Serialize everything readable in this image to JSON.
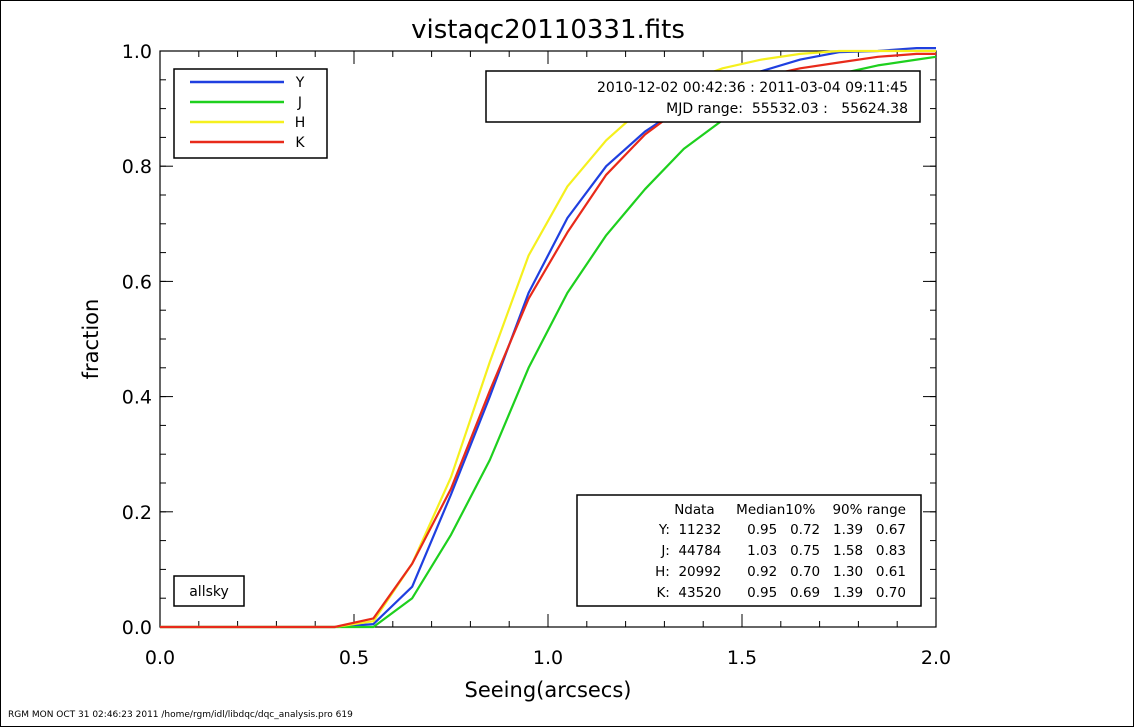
{
  "chart_data": {
    "type": "line",
    "title": "vistaqc20110331.fits",
    "xlabel": "Seeing(arcsecs)",
    "ylabel": "fraction",
    "xlim": [
      0.0,
      2.0
    ],
    "ylim": [
      0.0,
      1.0
    ],
    "x_ticks": [
      "0.0",
      "0.5",
      "1.0",
      "1.5",
      "2.0"
    ],
    "y_ticks": [
      "0.0",
      "0.2",
      "0.4",
      "0.6",
      "0.8",
      "1.0"
    ],
    "x": [
      0.0,
      0.45,
      0.55,
      0.65,
      0.75,
      0.85,
      0.95,
      1.05,
      1.15,
      1.25,
      1.35,
      1.45,
      1.55,
      1.65,
      1.75,
      1.85,
      1.95,
      2.0
    ],
    "series": [
      {
        "name": "Y",
        "color": "#1f3fe0",
        "values": [
          0.0,
          0.0,
          0.005,
          0.07,
          0.23,
          0.4,
          0.58,
          0.71,
          0.8,
          0.86,
          0.905,
          0.94,
          0.965,
          0.985,
          0.998,
          1.0,
          1.005,
          1.005
        ]
      },
      {
        "name": "J",
        "color": "#1ed01e",
        "values": [
          0.0,
          0.0,
          0.0,
          0.05,
          0.16,
          0.29,
          0.45,
          0.58,
          0.68,
          0.76,
          0.83,
          0.88,
          0.915,
          0.94,
          0.96,
          0.975,
          0.985,
          0.99
        ]
      },
      {
        "name": "H",
        "color": "#f5f01e",
        "values": [
          0.0,
          0.0,
          0.01,
          0.11,
          0.26,
          0.46,
          0.645,
          0.765,
          0.845,
          0.905,
          0.945,
          0.97,
          0.985,
          0.995,
          1.0,
          1.0,
          1.0,
          1.0
        ]
      },
      {
        "name": "K",
        "color": "#e82a1a",
        "values": [
          0.0,
          0.0,
          0.015,
          0.11,
          0.24,
          0.41,
          0.57,
          0.685,
          0.785,
          0.855,
          0.905,
          0.935,
          0.955,
          0.97,
          0.98,
          0.99,
          0.995,
          0.995
        ]
      }
    ],
    "legend_position": "top-left",
    "grid": false
  },
  "date_box": {
    "line1": "2010-12-02 00:42:36 : 2011-03-04 09:11:45",
    "line2": "MJD range:  55532.03 :   55624.38"
  },
  "stats_table": {
    "header": "Ndata     Median10%    90% range",
    "rows": [
      "Y:  11232      0.95   0.72   1.39   0.67",
      "J:  44784      1.03   0.75   1.58   0.83",
      "H:  20992      0.92   0.70   1.30   0.61",
      "K:  43520      0.95   0.69   1.39   0.70"
    ]
  },
  "label_box": "allsky",
  "footer": "RGM MON OCT 31 02:46:23 2011 /home/rgm/idl/libdqc/dqc_analysis.pro 619"
}
